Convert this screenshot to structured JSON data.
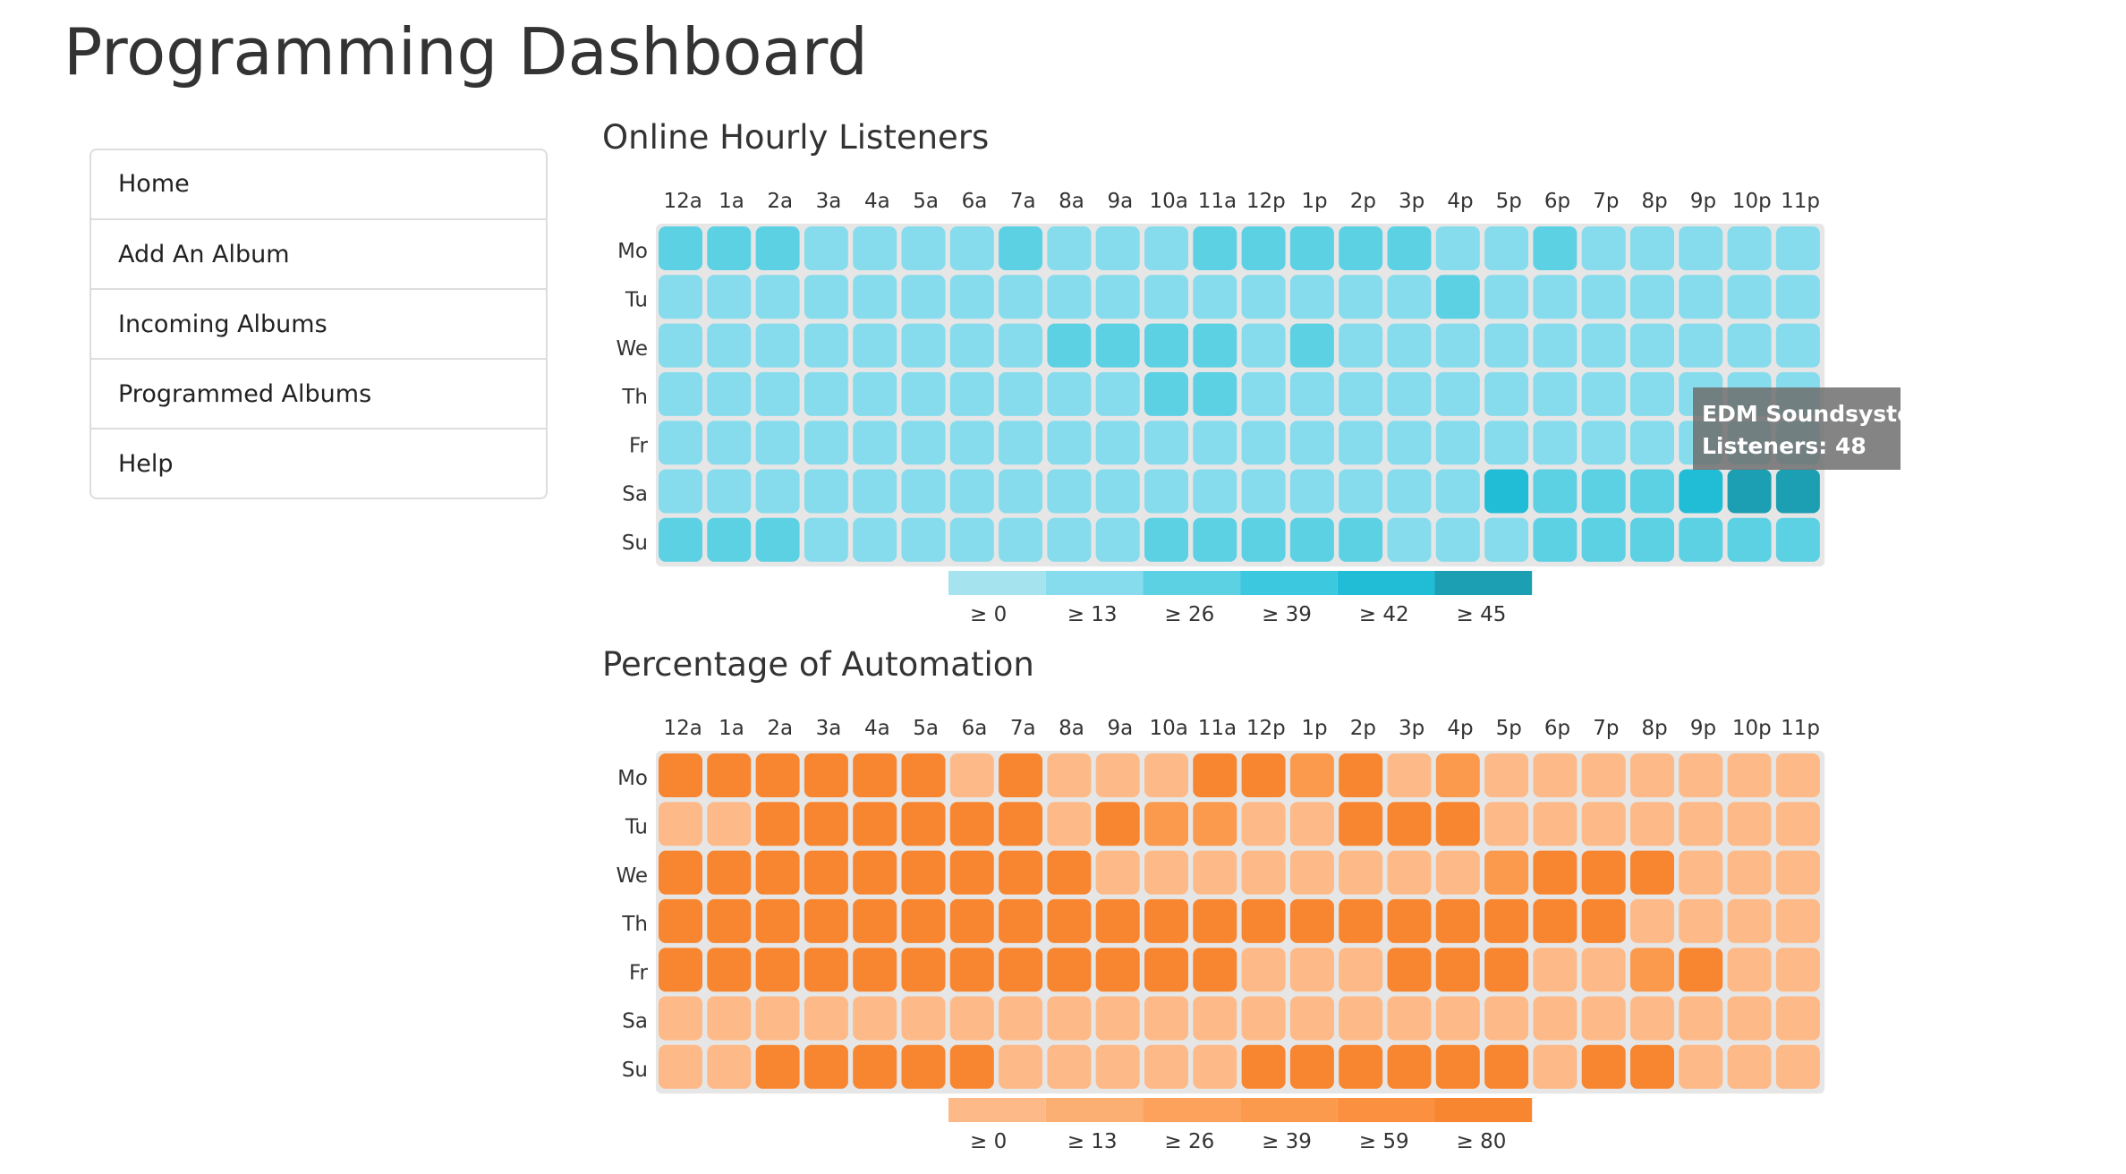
{
  "page": {
    "title": "Programming Dashboard"
  },
  "nav": {
    "items": [
      {
        "key": "home",
        "label": "Home"
      },
      {
        "key": "add-album",
        "label": "Add An Album"
      },
      {
        "key": "incoming-albums",
        "label": "Incoming Albums"
      },
      {
        "key": "programmed-albums",
        "label": "Programmed Albums"
      },
      {
        "key": "help",
        "label": "Help"
      }
    ]
  },
  "tooltip": {
    "title": "EDM Soundsystem",
    "value_label": "Listeners: 48"
  },
  "chart_data": [
    {
      "type": "heatmap",
      "title": "Online Hourly Listeners",
      "x": [
        "12a",
        "1a",
        "2a",
        "3a",
        "4a",
        "5a",
        "6a",
        "7a",
        "8a",
        "9a",
        "10a",
        "11a",
        "12p",
        "1p",
        "2p",
        "3p",
        "4p",
        "5p",
        "6p",
        "7p",
        "8p",
        "9p",
        "10p",
        "11p"
      ],
      "y": [
        "Mo",
        "Tu",
        "We",
        "Th",
        "Fr",
        "Sa",
        "Su"
      ],
      "legend": {
        "labels": [
          "≥ 0",
          "≥ 13",
          "≥ 26",
          "≥ 39",
          "≥ 42",
          "≥ 45"
        ],
        "colors": [
          "#a5e3ee",
          "#86dcec",
          "#5dd1e4",
          "#3cc8de",
          "#21bdd7",
          "#1d9fb3"
        ]
      },
      "z": [
        [
          2,
          2,
          2,
          1,
          1,
          1,
          1,
          2,
          1,
          1,
          1,
          2,
          2,
          2,
          2,
          2,
          1,
          1,
          2,
          1,
          1,
          1,
          1,
          1
        ],
        [
          1,
          1,
          1,
          1,
          1,
          1,
          1,
          1,
          1,
          1,
          1,
          1,
          1,
          1,
          1,
          1,
          2,
          1,
          1,
          1,
          1,
          1,
          1,
          1
        ],
        [
          1,
          1,
          1,
          1,
          1,
          1,
          1,
          1,
          2,
          2,
          2,
          2,
          1,
          2,
          1,
          1,
          1,
          1,
          1,
          1,
          1,
          1,
          1,
          1
        ],
        [
          1,
          1,
          1,
          1,
          1,
          1,
          1,
          1,
          1,
          1,
          2,
          2,
          1,
          1,
          1,
          1,
          1,
          1,
          1,
          1,
          1,
          1,
          1,
          1
        ],
        [
          1,
          1,
          1,
          1,
          1,
          1,
          1,
          1,
          1,
          1,
          1,
          1,
          1,
          1,
          1,
          1,
          1,
          1,
          1,
          1,
          1,
          1,
          1,
          1
        ],
        [
          1,
          1,
          1,
          1,
          1,
          1,
          1,
          1,
          1,
          1,
          1,
          1,
          1,
          1,
          1,
          1,
          1,
          4,
          2,
          2,
          2,
          4,
          5,
          5
        ],
        [
          2,
          2,
          2,
          1,
          1,
          1,
          1,
          1,
          1,
          1,
          2,
          2,
          2,
          2,
          2,
          1,
          1,
          1,
          2,
          2,
          2,
          2,
          2,
          2
        ]
      ]
    },
    {
      "type": "heatmap",
      "title": "Percentage of Automation",
      "x": [
        "12a",
        "1a",
        "2a",
        "3a",
        "4a",
        "5a",
        "6a",
        "7a",
        "8a",
        "9a",
        "10a",
        "11a",
        "12p",
        "1p",
        "2p",
        "3p",
        "4p",
        "5p",
        "6p",
        "7p",
        "8p",
        "9p",
        "10p",
        "11p"
      ],
      "y": [
        "Mo",
        "Tu",
        "We",
        "Th",
        "Fr",
        "Sa",
        "Su"
      ],
      "legend": {
        "labels": [
          "≥ 0",
          "≥ 13",
          "≥ 26",
          "≥ 39",
          "≥ 59",
          "≥ 80"
        ],
        "colors": [
          "#fdba88",
          "#fcaf73",
          "#fca25d",
          "#fb9a4d",
          "#fa9040",
          "#f88630"
        ]
      },
      "z": [
        [
          5,
          5,
          5,
          5,
          5,
          5,
          0,
          5,
          0,
          0,
          0,
          5,
          5,
          3,
          5,
          0,
          3,
          0,
          0,
          0,
          0,
          0,
          0,
          0
        ],
        [
          0,
          0,
          5,
          5,
          5,
          5,
          5,
          5,
          0,
          5,
          3,
          3,
          0,
          0,
          5,
          5,
          5,
          0,
          0,
          0,
          0,
          0,
          0,
          0
        ],
        [
          5,
          5,
          5,
          5,
          5,
          5,
          5,
          5,
          5,
          0,
          0,
          0,
          0,
          0,
          0,
          0,
          0,
          3,
          5,
          5,
          5,
          0,
          0,
          0
        ],
        [
          5,
          5,
          5,
          5,
          5,
          5,
          5,
          5,
          5,
          5,
          5,
          5,
          5,
          5,
          5,
          5,
          5,
          5,
          5,
          5,
          0,
          0,
          0,
          0
        ],
        [
          5,
          5,
          5,
          5,
          5,
          5,
          5,
          5,
          5,
          5,
          5,
          5,
          0,
          0,
          0,
          5,
          5,
          5,
          0,
          0,
          3,
          5,
          0,
          0
        ],
        [
          0,
          0,
          0,
          0,
          0,
          0,
          0,
          0,
          0,
          0,
          0,
          0,
          0,
          0,
          0,
          0,
          0,
          0,
          0,
          0,
          0,
          0,
          0,
          0
        ],
        [
          0,
          0,
          5,
          5,
          5,
          5,
          5,
          0,
          0,
          0,
          0,
          0,
          5,
          5,
          5,
          5,
          5,
          5,
          0,
          5,
          5,
          0,
          0,
          0
        ]
      ]
    }
  ]
}
